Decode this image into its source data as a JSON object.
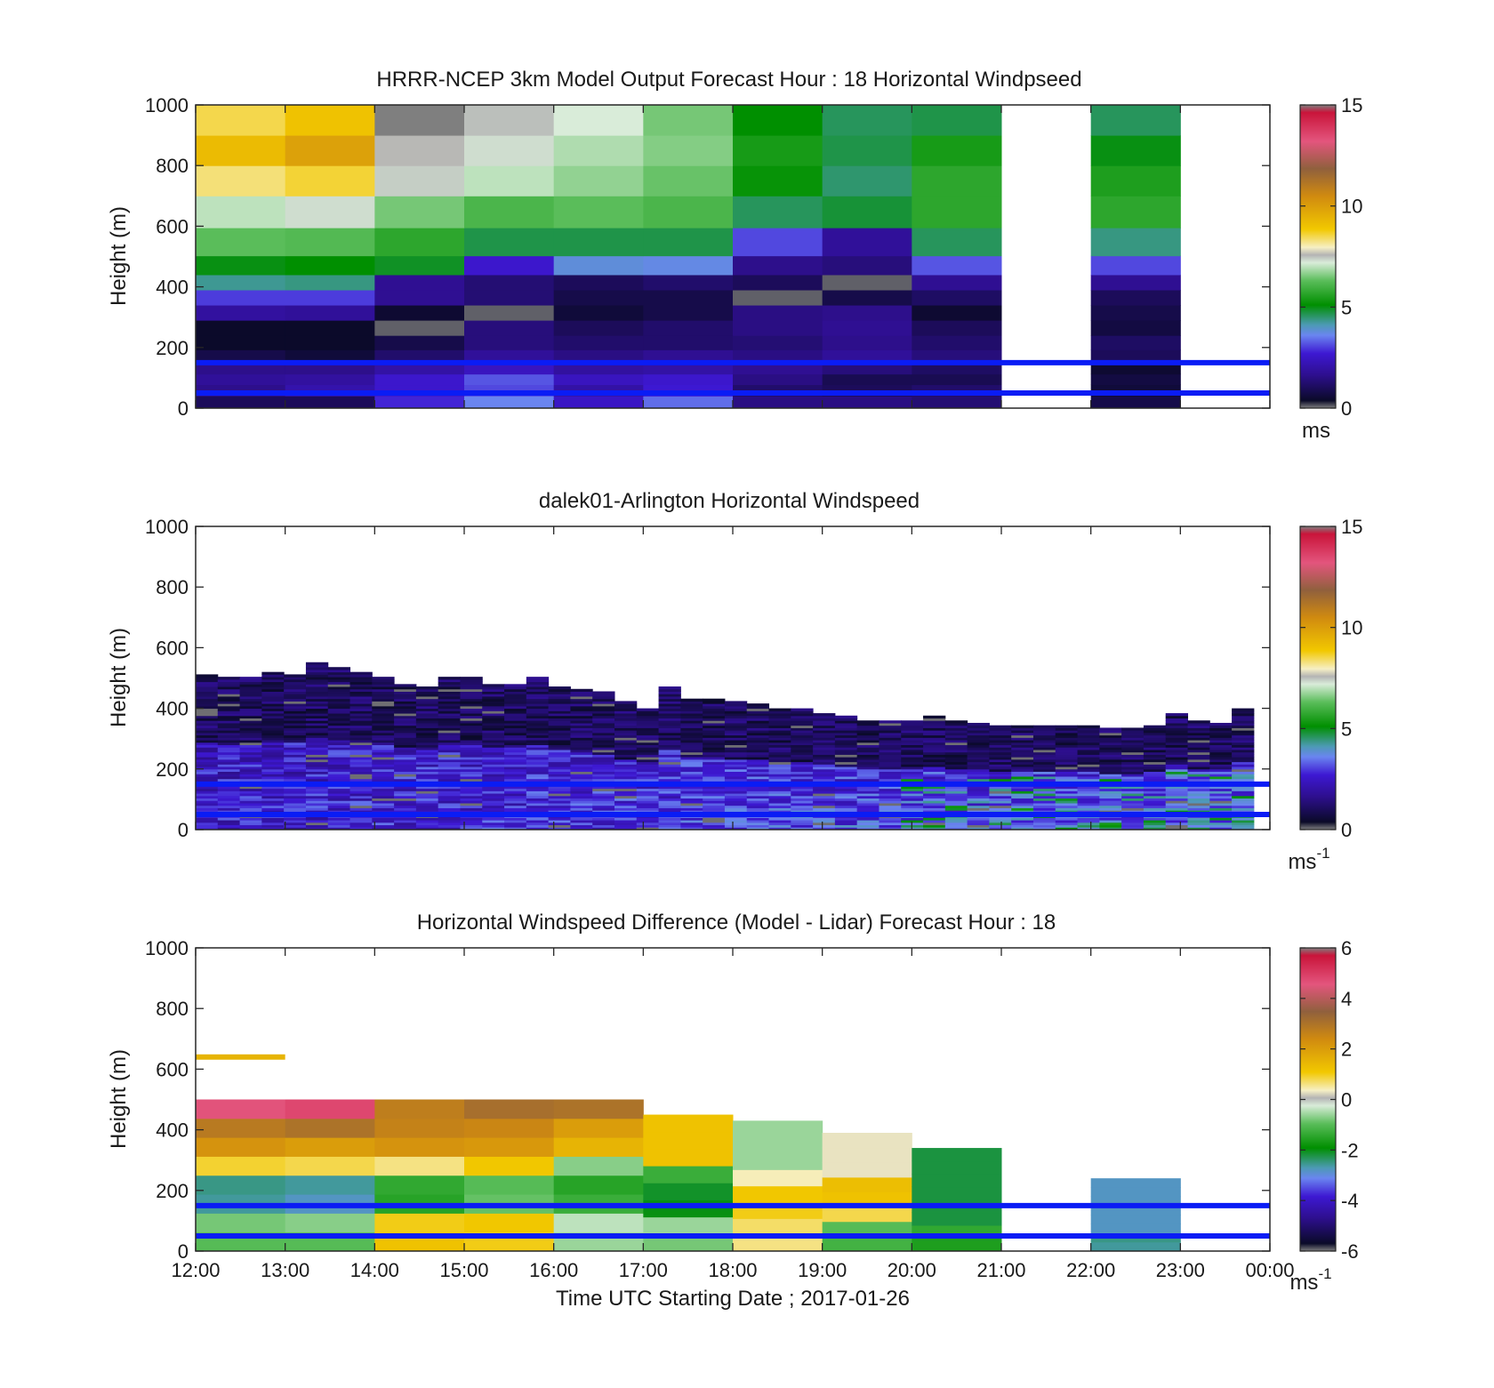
{
  "figure": {
    "xlabel": "Time UTC  Starting Date ; 2017-01-26",
    "xticks": [
      "12:00",
      "13:00",
      "14:00",
      "15:00",
      "16:00",
      "17:00",
      "18:00",
      "19:00",
      "20:00",
      "21:00",
      "22:00",
      "23:00",
      "00:00"
    ]
  },
  "chart_data": [
    {
      "type": "heatmap",
      "title": "HRRR-NCEP 3km Model Output   Forecast Hour : 18 Horizontal Windpseed",
      "ylabel": "Height (m)",
      "ylim": [
        0,
        1000
      ],
      "xlim": [
        "12:00",
        "00:00"
      ],
      "yticks": [
        "0",
        "200",
        "400",
        "600",
        "800",
        "1000"
      ],
      "colorbar": {
        "ticks": [
          "0",
          "5",
          "10",
          "15"
        ],
        "min": 0,
        "max": 15,
        "unit": "ms"
      },
      "reference_lines_height_m": [
        50,
        150
      ],
      "x_bins": [
        "12:00",
        "13:00",
        "14:00",
        "15:00",
        "16:00",
        "17:00",
        "18:00",
        "19:00",
        "20:00",
        "21:00",
        "22:00",
        "23:00"
      ],
      "height_levels_m": [
        20,
        60,
        95,
        130,
        170,
        215,
        265,
        315,
        365,
        415,
        465,
        540,
        650,
        750,
        850,
        950
      ],
      "values": [
        [
          1.0,
          1.0,
          2.8,
          3.6,
          2.5,
          3.4,
          1.5,
          1.5,
          1.3,
          null,
          0.8,
          null
        ],
        [
          1.6,
          2.1,
          2.6,
          3.1,
          2.0,
          2.7,
          1.2,
          1.0,
          1.2,
          null,
          0.6,
          null
        ],
        [
          1.8,
          1.9,
          2.6,
          3.2,
          2.4,
          2.6,
          1.5,
          0.9,
          0.9,
          null,
          0.7,
          null
        ],
        [
          1.6,
          1.6,
          2.0,
          2.4,
          1.9,
          2.0,
          1.7,
          1.4,
          1.1,
          null,
          0.5,
          null
        ],
        [
          0.8,
          0.6,
          1.2,
          1.8,
          1.5,
          1.7,
          1.5,
          1.8,
          1.4,
          null,
          1.0,
          null
        ],
        [
          0.4,
          0.4,
          0.8,
          1.4,
          1.2,
          1.2,
          1.3,
          1.6,
          1.2,
          null,
          1.1,
          null
        ],
        [
          0.4,
          0.4,
          0.1,
          1.4,
          1.0,
          1.2,
          1.5,
          1.7,
          1.0,
          null,
          0.7,
          null
        ],
        [
          1.9,
          1.8,
          0.5,
          0.1,
          0.6,
          0.8,
          1.5,
          1.6,
          0.5,
          null,
          0.8,
          null
        ],
        [
          3.0,
          3.0,
          1.7,
          1.3,
          0.8,
          0.8,
          0.1,
          0.8,
          1.1,
          null,
          1.0,
          null
        ],
        [
          4.3,
          4.4,
          1.7,
          1.3,
          1.0,
          1.2,
          1.0,
          0.1,
          1.7,
          null,
          1.7,
          null
        ],
        [
          5.0,
          5.1,
          4.9,
          2.6,
          3.8,
          3.7,
          1.6,
          1.4,
          3.2,
          null,
          3.1,
          null
        ],
        [
          6.3,
          6.2,
          5.7,
          4.7,
          4.7,
          4.7,
          3.1,
          1.8,
          4.6,
          null,
          4.4,
          null
        ],
        [
          7.0,
          7.3,
          6.5,
          6.1,
          6.3,
          6.1,
          4.6,
          4.8,
          5.7,
          null,
          5.7,
          null
        ],
        [
          8.3,
          8.6,
          7.4,
          7.0,
          6.7,
          6.4,
          5.2,
          4.5,
          5.7,
          null,
          5.5,
          null
        ],
        [
          9.2,
          9.9,
          7.6,
          7.3,
          6.9,
          6.6,
          5.4,
          4.7,
          5.4,
          null,
          5.0,
          null
        ],
        [
          8.5,
          9.0,
          0.0,
          7.5,
          7.2,
          6.5,
          5.1,
          4.6,
          4.7,
          null,
          4.6,
          null
        ]
      ]
    },
    {
      "type": "heatmap",
      "title": "dalek01-Arlington  Horizontal Windspeed",
      "ylabel": "Height (m)",
      "ylim": [
        0,
        1000
      ],
      "xlim": [
        "12:00",
        "00:00"
      ],
      "yticks": [
        "0",
        "200",
        "400",
        "600",
        "800",
        "1000"
      ],
      "colorbar": {
        "ticks": [
          "0",
          "5",
          "10",
          "15"
        ],
        "min": 0,
        "max": 15,
        "unit": "ms",
        "unit_exponent": "-1"
      },
      "reference_lines_height_m": [
        50,
        150
      ],
      "upper_profile_height_m": [
        510,
        500,
        500,
        520,
        510,
        550,
        530,
        520,
        500,
        480,
        470,
        500,
        500,
        480,
        480,
        500,
        470,
        460,
        450,
        420,
        400,
        470,
        430,
        430,
        420,
        410,
        400,
        400,
        380,
        370,
        360,
        360,
        360,
        370,
        360,
        350,
        340,
        340,
        340,
        340,
        340,
        330,
        330,
        340,
        380,
        360,
        350,
        400
      ]
    },
    {
      "type": "heatmap",
      "title": "Horizontal Windspeed Difference (Model - Lidar) Forecast Hour : 18",
      "ylabel": "Height (m)",
      "ylim": [
        0,
        1000
      ],
      "xlim": [
        "12:00",
        "00:00"
      ],
      "yticks": [
        "0",
        "200",
        "400",
        "600",
        "800",
        "1000"
      ],
      "colorbar": {
        "ticks": [
          "-6",
          "-4",
          "-2",
          "0",
          "2",
          "4",
          "6"
        ],
        "min": -6,
        "max": 6,
        "unit": "ms",
        "unit_exponent": "-1"
      },
      "reference_lines_height_m": [
        50,
        150
      ],
      "x_bins": [
        "12:00",
        "13:00",
        "14:00",
        "15:00",
        "16:00",
        "17:00",
        "18:00",
        "19:00",
        "20:00",
        "21:00",
        "22:00",
        "23:00"
      ],
      "column_top_height_m": [
        500,
        500,
        500,
        500,
        500,
        450,
        430,
        390,
        340,
        null,
        240,
        null
      ],
      "values": [
        [
          -1.0,
          -1.0,
          1.2,
          1.0,
          -0.6,
          -0.8,
          0.6,
          -1.2,
          -1.6,
          null,
          -2.6,
          null
        ],
        [
          -0.8,
          -0.7,
          1.0,
          1.1,
          -0.4,
          -0.6,
          0.7,
          -1.0,
          -1.4,
          null,
          -2.5,
          null
        ],
        [
          -2.6,
          -2.8,
          -1.5,
          -0.9,
          -1.3,
          -2.0,
          1.0,
          0.8,
          -2.2,
          null,
          -2.8,
          null
        ],
        [
          -2.5,
          -2.6,
          -1.4,
          -1.0,
          -1.5,
          -2.1,
          1.1,
          1.2,
          null,
          null,
          null,
          null
        ],
        [
          0.9,
          0.8,
          0.6,
          1.1,
          -0.7,
          -1.3,
          0.4,
          1.3,
          null,
          null,
          null,
          null
        ],
        [
          2.2,
          2.0,
          2.2,
          2.1,
          1.5,
          1.2,
          -0.6,
          0.3,
          null,
          null,
          null,
          null
        ],
        [
          2.8,
          3.0,
          2.6,
          2.5,
          2.0,
          null,
          null,
          null,
          null,
          null,
          null,
          null
        ],
        [
          4.6,
          4.8,
          2.7,
          3.1,
          3.0,
          null,
          null,
          null,
          null,
          null,
          null,
          null
        ]
      ],
      "annotation_segment": {
        "from": "12:00",
        "to": "13:00",
        "height_m": 640,
        "value": 1.5
      }
    }
  ]
}
